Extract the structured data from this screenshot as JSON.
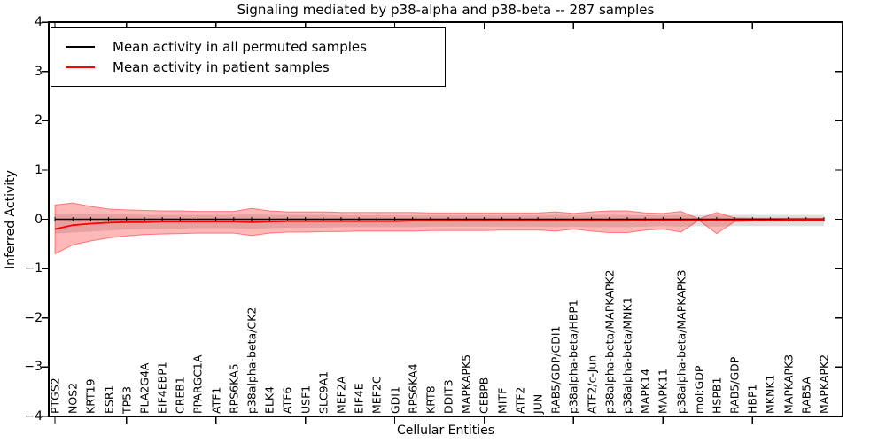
{
  "figure": {
    "background": "#ffffff"
  },
  "chart_data": {
    "type": "line",
    "title": "Signaling mediated by p38-alpha and p38-beta -- 287 samples",
    "xlabel": "Cellular Entities",
    "ylabel": "Inferred Activity",
    "ylim": [
      -4,
      4
    ],
    "yticks": [
      4,
      3,
      2,
      1,
      0,
      -1,
      -2,
      -3,
      -4
    ],
    "xtick_marks_at_category_index": [
      0,
      4,
      9,
      14,
      19,
      24,
      29,
      34,
      39
    ],
    "grid": false,
    "legend": {
      "position": "upper left"
    },
    "categories": [
      "PTGS2",
      "NOS2",
      "KRT19",
      "ESR1",
      "TP53",
      "PLA2G4A",
      "EIF4EBP1",
      "CREB1",
      "PPARGC1A",
      "ATF1",
      "RPS6KA5",
      "p38alpha-beta/CK2",
      "ELK4",
      "ATF6",
      "USF1",
      "SLC9A1",
      "MEF2A",
      "EIF4E",
      "MEF2C",
      "GDI1",
      "RPS6KA4",
      "KRT8",
      "DDIT3",
      "MAPKAPK5",
      "CEBPB",
      "MITF",
      "ATF2",
      "JUN",
      "RAB5/GDP/GDI1",
      "p38alpha-beta/HBP1",
      "ATF2/c-Jun",
      "p38alpha-beta/MAPKAPK2",
      "p38alpha-beta/MNK1",
      "MAPK14",
      "MAPK11",
      "p38alpha-beta/MAPKAPK3",
      "mol:GDP",
      "HSPB1",
      "RAB5/GDP",
      "HBP1",
      "MKNK1",
      "MAPKAPK3",
      "RAB5A",
      "MAPKAPK2"
    ],
    "series": [
      {
        "name": "Mean activity in all permuted samples",
        "color": "#000000",
        "marker": "vertical-dash",
        "values": [
          0,
          0,
          0,
          0,
          0,
          0,
          0,
          0,
          0,
          0,
          0,
          0,
          0,
          0,
          0,
          0,
          0,
          0,
          0,
          0,
          0,
          0,
          0,
          0,
          0,
          0,
          0,
          0,
          0,
          0,
          0,
          0,
          0,
          0,
          0,
          0,
          0,
          0,
          0,
          0,
          0,
          0,
          0,
          0
        ]
      },
      {
        "name": "Mean activity in patient samples",
        "color": "#ff0000",
        "marker": null,
        "values": [
          -0.2,
          -0.12,
          -0.09,
          -0.07,
          -0.06,
          -0.06,
          -0.05,
          -0.05,
          -0.05,
          -0.05,
          -0.05,
          -0.06,
          -0.05,
          -0.04,
          -0.04,
          -0.04,
          -0.04,
          -0.04,
          -0.04,
          -0.04,
          -0.03,
          -0.03,
          -0.03,
          -0.03,
          -0.03,
          -0.03,
          -0.03,
          -0.03,
          -0.03,
          -0.03,
          -0.03,
          -0.03,
          -0.03,
          -0.02,
          -0.02,
          -0.02,
          -0.02,
          -0.02,
          -0.02,
          -0.02,
          -0.02,
          -0.01,
          -0.01,
          -0.01
        ]
      }
    ],
    "bands": [
      {
        "name": "permuted samples std band",
        "color": "#808080",
        "opacity": 0.25,
        "upper": [
          0.11,
          0.11,
          0.1,
          0.1,
          0.1,
          0.09,
          0.09,
          0.09,
          0.09,
          0.09,
          0.09,
          0.1,
          0.09,
          0.09,
          0.09,
          0.09,
          0.08,
          0.08,
          0.08,
          0.08,
          0.08,
          0.08,
          0.08,
          0.08,
          0.08,
          0.08,
          0.08,
          0.08,
          0.09,
          0.08,
          0.09,
          0.09,
          0.09,
          0.08,
          0.08,
          0.09,
          0.09,
          0.09,
          0.09,
          0.09,
          0.09,
          0.09,
          0.09,
          0.09
        ],
        "lower": [
          -0.29,
          -0.27,
          -0.25,
          -0.23,
          -0.21,
          -0.2,
          -0.19,
          -0.19,
          -0.18,
          -0.18,
          -0.18,
          -0.2,
          -0.18,
          -0.17,
          -0.17,
          -0.17,
          -0.16,
          -0.16,
          -0.16,
          -0.16,
          -0.16,
          -0.15,
          -0.15,
          -0.15,
          -0.15,
          -0.15,
          -0.15,
          -0.15,
          -0.16,
          -0.15,
          -0.16,
          -0.16,
          -0.16,
          -0.15,
          -0.14,
          -0.15,
          -0.14,
          -0.15,
          -0.14,
          -0.14,
          -0.14,
          -0.14,
          -0.14,
          -0.14
        ]
      },
      {
        "name": "patient samples std band",
        "color": "#ff0000",
        "opacity": 0.28,
        "upper": [
          0.29,
          0.33,
          0.26,
          0.21,
          0.19,
          0.18,
          0.17,
          0.17,
          0.16,
          0.16,
          0.16,
          0.22,
          0.17,
          0.15,
          0.15,
          0.15,
          0.14,
          0.14,
          0.14,
          0.14,
          0.14,
          0.13,
          0.13,
          0.13,
          0.13,
          0.13,
          0.13,
          0.13,
          0.15,
          0.12,
          0.15,
          0.17,
          0.17,
          0.13,
          0.12,
          0.16,
          0.01,
          0.14,
          0.03,
          0.02,
          0.02,
          0.02,
          0.02,
          0.02
        ],
        "lower": [
          -0.7,
          -0.52,
          -0.44,
          -0.38,
          -0.34,
          -0.31,
          -0.3,
          -0.29,
          -0.28,
          -0.28,
          -0.28,
          -0.33,
          -0.28,
          -0.26,
          -0.26,
          -0.25,
          -0.25,
          -0.24,
          -0.24,
          -0.24,
          -0.24,
          -0.23,
          -0.23,
          -0.23,
          -0.23,
          -0.22,
          -0.22,
          -0.22,
          -0.24,
          -0.2,
          -0.24,
          -0.27,
          -0.27,
          -0.22,
          -0.2,
          -0.26,
          -0.02,
          -0.29,
          -0.05,
          -0.04,
          -0.04,
          -0.04,
          -0.04,
          -0.04
        ]
      }
    ]
  }
}
